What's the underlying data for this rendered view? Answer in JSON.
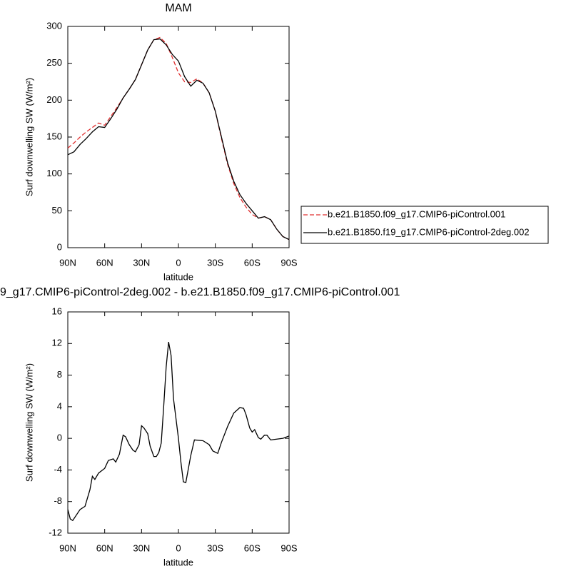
{
  "chart_data": [
    {
      "type": "line",
      "title": "MAM",
      "xlabel": "latitude",
      "ylabel": "Surf downwelling SW (W/m²)",
      "x": [
        90,
        85,
        80,
        75,
        70,
        65,
        60,
        55,
        50,
        45,
        40,
        35,
        30,
        25,
        20,
        15,
        10,
        5,
        0,
        -5,
        -10,
        -15,
        -20,
        -25,
        -30,
        -35,
        -40,
        -45,
        -50,
        -55,
        -60,
        -65,
        -70,
        -75,
        -80,
        -85,
        -90
      ],
      "series": [
        {
          "name": "b.e21.B1850.f09_g17.CMIP6-piControl.001",
          "color": "#e03030",
          "dash": true,
          "values": [
            135,
            142,
            150,
            157,
            163,
            169,
            166,
            178,
            190,
            203,
            215,
            228,
            248,
            268,
            282,
            285,
            277,
            258,
            237,
            225,
            224,
            229,
            223,
            210,
            185,
            148,
            113,
            87,
            68,
            55,
            45,
            40,
            42,
            38,
            25,
            15,
            11
          ]
        },
        {
          "name": "b.e21.B1850.f19_g17.CMIP6-piControl-2deg.002",
          "color": "#000000",
          "dash": false,
          "values": [
            126,
            130,
            140,
            148,
            157,
            164,
            163,
            175,
            188,
            203,
            215,
            228,
            248,
            268,
            282,
            283,
            275,
            262,
            253,
            232,
            219,
            227,
            223,
            210,
            185,
            150,
            115,
            90,
            72,
            60,
            50,
            40,
            42,
            38,
            25,
            15,
            11
          ]
        }
      ],
      "xlim": [
        90,
        -90
      ],
      "xticks": [
        {
          "value": 90,
          "label": "90N"
        },
        {
          "value": 60,
          "label": "60N"
        },
        {
          "value": 30,
          "label": "30N"
        },
        0,
        {
          "value": -30,
          "label": "30S"
        },
        {
          "value": -60,
          "label": "60S"
        },
        {
          "value": -90,
          "label": "90S"
        }
      ],
      "ylim": [
        0,
        300
      ],
      "yticks": [
        0,
        50,
        100,
        150,
        200,
        250,
        300
      ],
      "legend_position": "right"
    },
    {
      "type": "line",
      "title": "9_g17.CMIP6-piControl-2deg.002 - b.e21.B1850.f09_g17.CMIP6-piControl.001",
      "xlabel": "latitude",
      "ylabel": "Surf downwelling SW (W/m²)",
      "x": [
        90,
        88,
        86,
        80,
        76,
        72,
        70,
        68,
        65,
        60,
        57,
        53,
        51,
        48,
        45,
        43,
        40,
        37,
        35,
        32,
        30,
        28,
        25,
        23,
        20,
        18,
        16,
        14,
        12,
        10,
        8,
        6,
        4,
        0,
        -2,
        -4,
        -6,
        -10,
        -13,
        -20,
        -25,
        -28,
        -32,
        -35,
        -40,
        -45,
        -50,
        -53,
        -55,
        -58,
        -60,
        -62,
        -65,
        -67,
        -70,
        -72,
        -75,
        -80,
        -85,
        -90
      ],
      "series": [
        {
          "color": "#000000",
          "dash": false,
          "values": [
            -9,
            -10.2,
            -10.4,
            -9,
            -8.6,
            -6.5,
            -4.8,
            -5.2,
            -4.4,
            -3.8,
            -2.8,
            -2.6,
            -3,
            -2,
            0.4,
            0.2,
            -0.8,
            -1.5,
            -1.7,
            -0.8,
            1.6,
            1.3,
            0.6,
            -1,
            -2.3,
            -2.3,
            -1.8,
            -0.6,
            4,
            9,
            12.2,
            10.5,
            5,
            0,
            -3,
            -5.5,
            -5.6,
            -2.2,
            -0.2,
            -0.3,
            -0.8,
            -1.6,
            -1.9,
            -0.5,
            1.5,
            3.2,
            3.9,
            3.8,
            3,
            1.3,
            0.8,
            1.1,
            0.1,
            -0.1,
            0.4,
            0.4,
            -0.2,
            -0.1,
            0,
            0.3
          ]
        }
      ],
      "xlim": [
        90,
        -90
      ],
      "xticks": [
        {
          "value": 90,
          "label": "90N"
        },
        {
          "value": 60,
          "label": "60N"
        },
        {
          "value": 30,
          "label": "30N"
        },
        0,
        {
          "value": -30,
          "label": "30S"
        },
        {
          "value": -60,
          "label": "60S"
        },
        {
          "value": -90,
          "label": "90S"
        }
      ],
      "ylim": [
        -12,
        16
      ],
      "yticks": [
        -12,
        -8,
        -4,
        0,
        4,
        8,
        12,
        16
      ]
    }
  ]
}
